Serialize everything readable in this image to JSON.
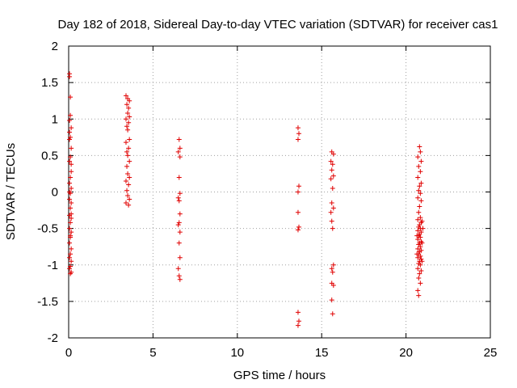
{
  "chart_data": {
    "type": "scatter",
    "title": "Day 182 of 2018, Sidereal Day-to-day VTEC variation (SDTVAR) for receiver cas1",
    "xlabel": "GPS time / hours",
    "ylabel": "SDTVAR / TECUs",
    "xlim": [
      0,
      25
    ],
    "ylim": [
      -2,
      2
    ],
    "xticks": [
      0,
      5,
      10,
      15,
      20,
      25
    ],
    "yticks": [
      -2,
      -1.5,
      -1,
      -0.5,
      0,
      0.5,
      1,
      1.5,
      2
    ],
    "xtick_labels": [
      "0",
      "5",
      "10",
      "15",
      "20",
      "25"
    ],
    "ytick_labels": [
      "-2",
      "-1.5",
      "-1",
      "-0.5",
      "0",
      "0.5",
      "1",
      "1.5",
      "2"
    ],
    "grid": true,
    "marker": "+",
    "color": "#e00000",
    "series": [
      {
        "name": "cas1",
        "points": [
          [
            0.05,
            1.62
          ],
          [
            0.05,
            1.58
          ],
          [
            0.1,
            1.3
          ],
          [
            0.1,
            1.05
          ],
          [
            0.05,
            0.98
          ],
          [
            0.15,
            0.88
          ],
          [
            0.1,
            0.75
          ],
          [
            0.05,
            0.72
          ],
          [
            0.15,
            0.6
          ],
          [
            0.1,
            0.48
          ],
          [
            0.05,
            0.42
          ],
          [
            0.15,
            0.28
          ],
          [
            0.1,
            0.2
          ],
          [
            0.05,
            0.12
          ],
          [
            0.15,
            0.05
          ],
          [
            0.1,
            -0.02
          ],
          [
            0.05,
            -0.1
          ],
          [
            0.15,
            -0.15
          ],
          [
            0.1,
            -0.22
          ],
          [
            0.05,
            -0.32
          ],
          [
            0.15,
            -0.36
          ],
          [
            0.1,
            -0.42
          ],
          [
            0.05,
            -0.5
          ],
          [
            0.15,
            -0.55
          ],
          [
            0.1,
            -0.62
          ],
          [
            0.05,
            -0.7
          ],
          [
            0.15,
            -0.78
          ],
          [
            0.1,
            -0.85
          ],
          [
            0.05,
            -0.9
          ],
          [
            0.15,
            -0.95
          ],
          [
            0.1,
            -1.02
          ],
          [
            0.05,
            -1.05
          ],
          [
            0.15,
            -1.1
          ],
          [
            0.1,
            -1.12
          ],
          [
            0.05,
            0.82
          ],
          [
            0.15,
            0.38
          ],
          [
            0.1,
            -0.6
          ],
          [
            0.05,
            0.0
          ],
          [
            0.15,
            -0.3
          ],
          [
            3.4,
            1.32
          ],
          [
            3.5,
            1.28
          ],
          [
            3.6,
            1.25
          ],
          [
            3.45,
            1.2
          ],
          [
            3.55,
            1.15
          ],
          [
            3.5,
            1.08
          ],
          [
            3.6,
            1.03
          ],
          [
            3.4,
            1.0
          ],
          [
            3.55,
            0.95
          ],
          [
            3.45,
            0.9
          ],
          [
            3.5,
            0.85
          ],
          [
            3.6,
            0.72
          ],
          [
            3.4,
            0.68
          ],
          [
            3.55,
            0.6
          ],
          [
            3.45,
            0.55
          ],
          [
            3.5,
            0.5
          ],
          [
            3.6,
            0.42
          ],
          [
            3.45,
            0.35
          ],
          [
            3.5,
            0.25
          ],
          [
            3.6,
            0.2
          ],
          [
            3.4,
            0.15
          ],
          [
            3.55,
            0.1
          ],
          [
            3.45,
            0.02
          ],
          [
            3.5,
            -0.05
          ],
          [
            3.6,
            -0.1
          ],
          [
            3.4,
            -0.15
          ],
          [
            3.55,
            -0.18
          ],
          [
            6.55,
            0.72
          ],
          [
            6.6,
            0.6
          ],
          [
            6.5,
            0.55
          ],
          [
            6.6,
            0.48
          ],
          [
            6.55,
            0.2
          ],
          [
            6.6,
            -0.02
          ],
          [
            6.5,
            -0.08
          ],
          [
            6.55,
            -0.12
          ],
          [
            6.6,
            -0.3
          ],
          [
            6.55,
            -0.42
          ],
          [
            6.5,
            -0.45
          ],
          [
            6.6,
            -0.55
          ],
          [
            6.55,
            -0.7
          ],
          [
            6.6,
            -0.9
          ],
          [
            6.5,
            -1.05
          ],
          [
            6.55,
            -1.15
          ],
          [
            6.6,
            -1.2
          ],
          [
            13.6,
            0.88
          ],
          [
            13.65,
            0.8
          ],
          [
            13.6,
            0.72
          ],
          [
            13.65,
            0.08
          ],
          [
            13.6,
            0.0
          ],
          [
            13.6,
            -0.28
          ],
          [
            13.65,
            -0.48
          ],
          [
            13.6,
            -0.52
          ],
          [
            13.6,
            -1.65
          ],
          [
            13.65,
            -1.77
          ],
          [
            13.6,
            -1.83
          ],
          [
            15.6,
            0.55
          ],
          [
            15.7,
            0.52
          ],
          [
            15.55,
            0.42
          ],
          [
            15.65,
            0.38
          ],
          [
            15.6,
            0.3
          ],
          [
            15.7,
            0.22
          ],
          [
            15.55,
            0.18
          ],
          [
            15.65,
            0.05
          ],
          [
            15.6,
            -0.15
          ],
          [
            15.7,
            -0.22
          ],
          [
            15.55,
            -0.28
          ],
          [
            15.6,
            -0.4
          ],
          [
            15.65,
            -0.5
          ],
          [
            15.7,
            -1.0
          ],
          [
            15.6,
            -1.05
          ],
          [
            15.65,
            -1.1
          ],
          [
            15.6,
            -1.25
          ],
          [
            15.7,
            -1.28
          ],
          [
            15.6,
            -1.48
          ],
          [
            15.65,
            -1.67
          ],
          [
            20.8,
            0.62
          ],
          [
            20.85,
            0.55
          ],
          [
            20.7,
            0.48
          ],
          [
            20.9,
            0.42
          ],
          [
            20.75,
            0.35
          ],
          [
            20.85,
            0.28
          ],
          [
            20.7,
            0.2
          ],
          [
            20.9,
            0.12
          ],
          [
            20.8,
            0.08
          ],
          [
            20.75,
            0.02
          ],
          [
            20.85,
            -0.02
          ],
          [
            20.7,
            -0.08
          ],
          [
            20.9,
            -0.12
          ],
          [
            20.8,
            -0.2
          ],
          [
            20.75,
            -0.28
          ],
          [
            20.85,
            -0.35
          ],
          [
            20.7,
            -0.38
          ],
          [
            20.9,
            -0.42
          ],
          [
            20.8,
            -0.45
          ],
          [
            20.75,
            -0.48
          ],
          [
            20.85,
            -0.5
          ],
          [
            20.7,
            -0.53
          ],
          [
            20.9,
            -0.55
          ],
          [
            20.8,
            -0.58
          ],
          [
            20.75,
            -0.6
          ],
          [
            20.85,
            -0.62
          ],
          [
            20.7,
            -0.65
          ],
          [
            20.9,
            -0.68
          ],
          [
            20.8,
            -0.7
          ],
          [
            20.75,
            -0.72
          ],
          [
            20.85,
            -0.75
          ],
          [
            20.7,
            -0.78
          ],
          [
            20.9,
            -0.8
          ],
          [
            20.8,
            -0.82
          ],
          [
            20.75,
            -0.85
          ],
          [
            20.85,
            -0.88
          ],
          [
            20.7,
            -0.9
          ],
          [
            20.9,
            -0.92
          ],
          [
            20.8,
            -0.95
          ],
          [
            20.75,
            -0.98
          ],
          [
            20.85,
            -1.0
          ],
          [
            20.7,
            -1.05
          ],
          [
            20.9,
            -1.08
          ],
          [
            20.8,
            -1.12
          ],
          [
            20.75,
            -1.18
          ],
          [
            20.85,
            -1.25
          ],
          [
            20.7,
            -1.35
          ],
          [
            20.75,
            -1.42
          ],
          [
            20.95,
            -0.4
          ],
          [
            20.95,
            -0.7
          ],
          [
            20.65,
            -0.6
          ],
          [
            20.95,
            -0.95
          ],
          [
            20.65,
            -0.85
          ],
          [
            21.0,
            -0.5
          ]
        ]
      }
    ]
  }
}
